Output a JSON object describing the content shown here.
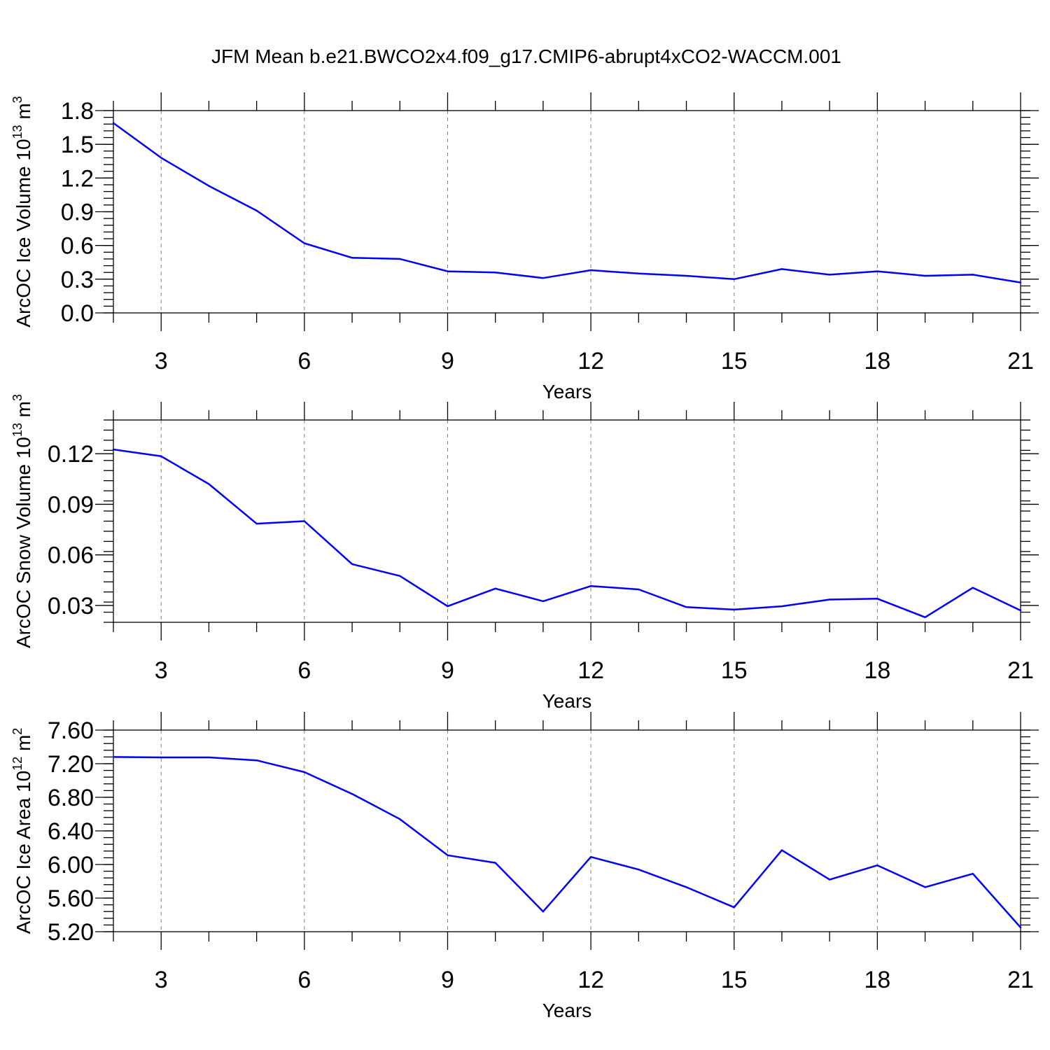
{
  "title": "JFM Mean b.e21.BWCO2x4.f09_g17.CMIP6-abrupt4xCO2-WACCM.001",
  "chart_data": [
    {
      "type": "line",
      "ylabel_main": "ArcOC Ice Volume 10",
      "ylabel_exp": "13",
      "ylabel_unit": " m",
      "ylabel_unit_exp": "3",
      "xlabel": "Years",
      "xlim": [
        2,
        21
      ],
      "ylim": [
        0.0,
        1.8
      ],
      "xticks": [
        3,
        6,
        9,
        12,
        15,
        18,
        21
      ],
      "xtick_labels": [
        "3",
        "6",
        "9",
        "12",
        "15",
        "18",
        "21"
      ],
      "yticks": [
        0.0,
        0.3,
        0.6,
        0.9,
        1.2,
        1.5,
        1.8
      ],
      "ytick_labels": [
        "0.0",
        "0.3",
        "0.6",
        "0.9",
        "1.2",
        "1.5",
        "1.8"
      ],
      "yminor_step": 0.06,
      "xgrid": true,
      "color": "#0000ff",
      "x": [
        2,
        3,
        4,
        5,
        6,
        7,
        8,
        9,
        10,
        11,
        12,
        13,
        14,
        15,
        16,
        17,
        18,
        19,
        20,
        21
      ],
      "values": [
        1.69,
        1.38,
        1.13,
        0.91,
        0.62,
        0.49,
        0.48,
        0.37,
        0.36,
        0.31,
        0.38,
        0.35,
        0.33,
        0.3,
        0.39,
        0.34,
        0.37,
        0.33,
        0.34,
        0.27
      ]
    },
    {
      "type": "line",
      "ylabel_main": "ArcOC Snow Volume 10",
      "ylabel_exp": "13",
      "ylabel_unit": " m",
      "ylabel_unit_exp": "3",
      "xlabel": "Years",
      "xlim": [
        2,
        21
      ],
      "ylim": [
        0.02,
        0.14
      ],
      "xticks": [
        3,
        6,
        9,
        12,
        15,
        18,
        21
      ],
      "xtick_labels": [
        "3",
        "6",
        "9",
        "12",
        "15",
        "18",
        "21"
      ],
      "yticks": [
        0.03,
        0.06,
        0.09,
        0.12
      ],
      "ytick_labels": [
        "0.03",
        "0.06",
        "0.09",
        "0.12"
      ],
      "yminor_step": 0.006,
      "xgrid": true,
      "color": "#0000ff",
      "x": [
        2,
        3,
        4,
        5,
        6,
        7,
        8,
        9,
        10,
        11,
        12,
        13,
        14,
        15,
        16,
        17,
        18,
        19,
        20,
        21
      ],
      "values": [
        0.1225,
        0.1185,
        0.102,
        0.0785,
        0.08,
        0.0545,
        0.0475,
        0.0295,
        0.04,
        0.0325,
        0.0415,
        0.0395,
        0.029,
        0.0275,
        0.0295,
        0.0335,
        0.034,
        0.023,
        0.0405,
        0.027
      ]
    },
    {
      "type": "line",
      "ylabel_main": "ArcOC Ice Area 10",
      "ylabel_exp": "12",
      "ylabel_unit": " m",
      "ylabel_unit_exp": "2",
      "xlabel": "Years",
      "xlim": [
        2,
        21
      ],
      "ylim": [
        5.2,
        7.6
      ],
      "xticks": [
        3,
        6,
        9,
        12,
        15,
        18,
        21
      ],
      "xtick_labels": [
        "3",
        "6",
        "9",
        "12",
        "15",
        "18",
        "21"
      ],
      "yticks": [
        5.2,
        5.6,
        6.0,
        6.4,
        6.8,
        7.2,
        7.6
      ],
      "ytick_labels": [
        "5.20",
        "5.60",
        "6.00",
        "6.40",
        "6.80",
        "7.20",
        "7.60"
      ],
      "yminor_step": 0.08,
      "xgrid": true,
      "color": "#0000ff",
      "x": [
        2,
        3,
        4,
        5,
        6,
        7,
        8,
        9,
        10,
        11,
        12,
        13,
        14,
        15,
        16,
        17,
        18,
        19,
        20,
        21
      ],
      "values": [
        7.28,
        7.275,
        7.275,
        7.24,
        7.1,
        6.84,
        6.54,
        6.11,
        6.02,
        5.44,
        6.09,
        5.94,
        5.73,
        5.49,
        6.17,
        5.82,
        5.99,
        5.73,
        5.89,
        5.25
      ]
    }
  ]
}
